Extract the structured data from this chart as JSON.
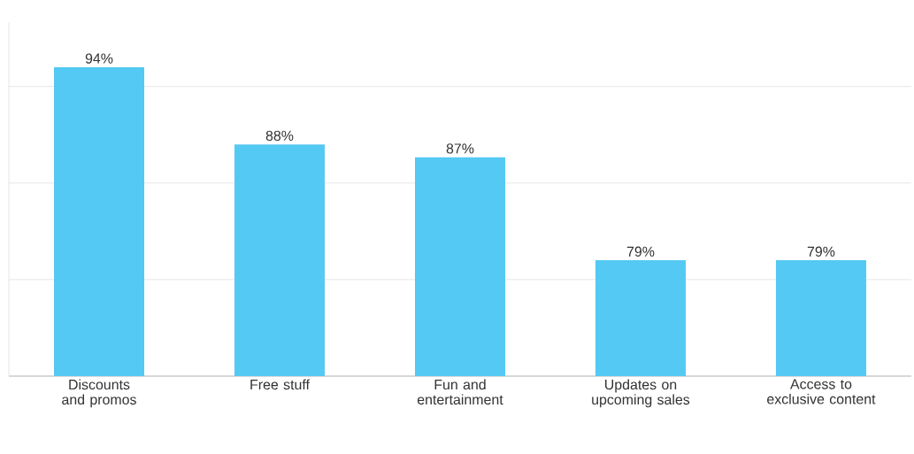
{
  "chart_data": {
    "type": "bar",
    "categories": [
      "Discounts and promos",
      "Free stuff",
      "Fun and entertainment",
      "Updates on upcoming sales",
      "Access to exclusive content"
    ],
    "values": [
      94,
      88,
      87,
      79,
      79
    ],
    "value_labels": [
      "94%",
      "88%",
      "87%",
      "79%",
      "79%"
    ],
    "color": "#54c9f3",
    "ylim": [
      70,
      97.5
    ],
    "yticks": [
      {
        "value": 77.5,
        "label": null
      },
      {
        "value": 85,
        "label": null
      },
      {
        "value": 92.5,
        "label": null
      }
    ],
    "grid": "y"
  }
}
